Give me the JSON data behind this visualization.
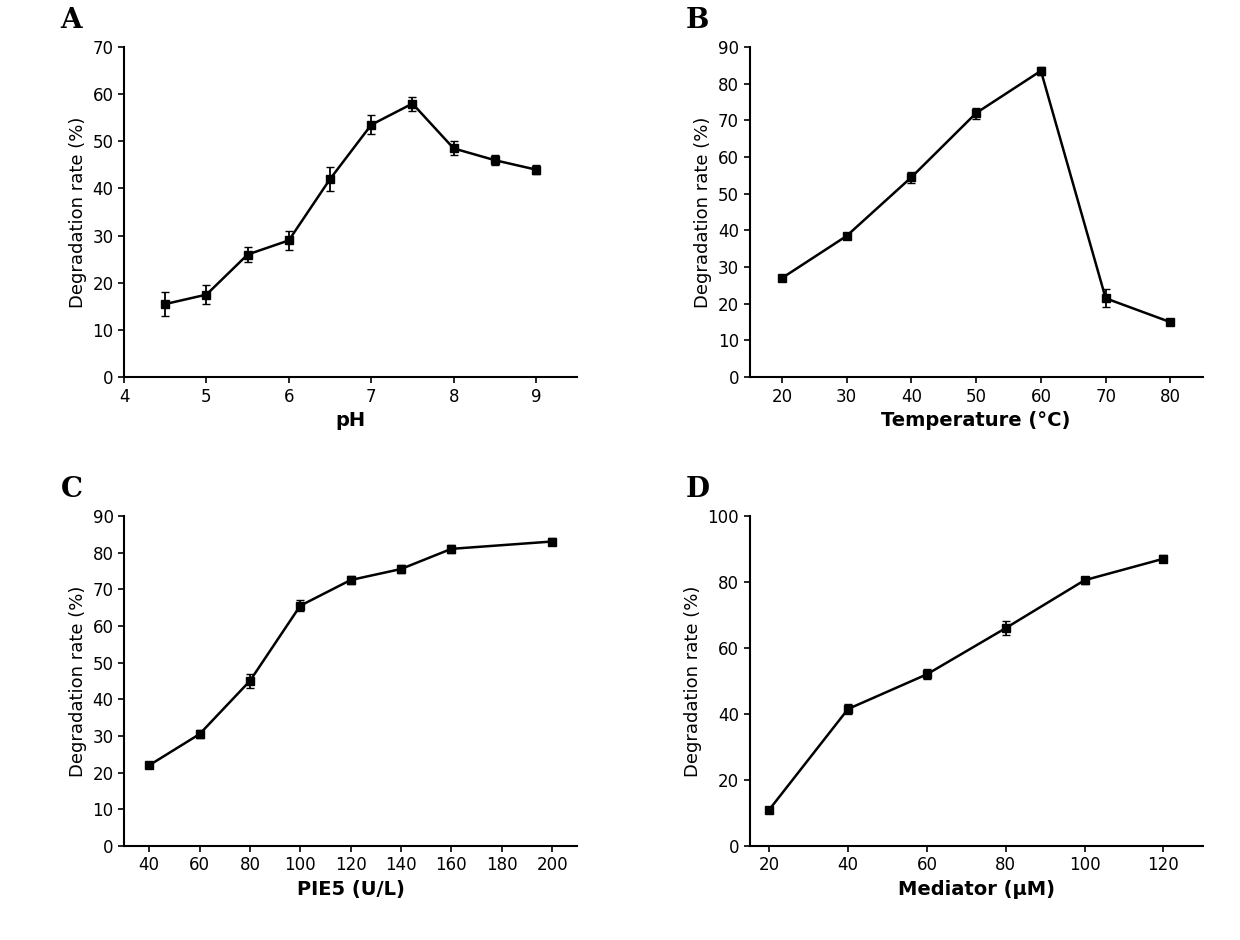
{
  "A": {
    "x": [
      4.5,
      5.0,
      5.5,
      6.0,
      6.5,
      7.0,
      7.5,
      8.0,
      8.5,
      9.0
    ],
    "y": [
      15.5,
      17.5,
      26.0,
      29.0,
      42.0,
      53.5,
      58.0,
      48.5,
      46.0,
      44.0
    ],
    "yerr": [
      2.5,
      2.0,
      1.5,
      2.0,
      2.5,
      2.0,
      1.5,
      1.5,
      1.0,
      1.0
    ],
    "xlabel": "pH",
    "ylabel": "Degradation rate (%)",
    "label": "A",
    "ylim": [
      0,
      70
    ],
    "yticks": [
      0,
      10,
      20,
      30,
      40,
      50,
      60,
      70
    ],
    "xlim": [
      4.0,
      9.5
    ],
    "xticks": [
      4,
      5,
      6,
      7,
      8,
      9
    ]
  },
  "B": {
    "x": [
      20,
      30,
      40,
      50,
      60,
      70,
      80
    ],
    "y": [
      27.0,
      38.5,
      54.5,
      72.0,
      83.5,
      21.5,
      15.0
    ],
    "yerr": [
      0.5,
      0.5,
      1.5,
      1.5,
      1.0,
      2.5,
      0.5
    ],
    "xlabel": "Temperature (°C)",
    "ylabel": "Degradation rate (%)",
    "label": "B",
    "ylim": [
      0,
      90
    ],
    "yticks": [
      0,
      10,
      20,
      30,
      40,
      50,
      60,
      70,
      80,
      90
    ],
    "xlim": [
      15,
      85
    ],
    "xticks": [
      20,
      30,
      40,
      50,
      60,
      70,
      80
    ]
  },
  "C": {
    "x": [
      40,
      60,
      80,
      100,
      120,
      140,
      160,
      200
    ],
    "y": [
      22.0,
      30.5,
      45.0,
      65.5,
      72.5,
      75.5,
      81.0,
      83.0
    ],
    "yerr": [
      0.5,
      1.0,
      2.0,
      1.5,
      1.0,
      1.0,
      1.0,
      1.0
    ],
    "xlabel": "PIE5 (U/L)",
    "ylabel": "Degradation rate (%)",
    "label": "C",
    "ylim": [
      0,
      90
    ],
    "yticks": [
      0,
      10,
      20,
      30,
      40,
      50,
      60,
      70,
      80,
      90
    ],
    "xlim": [
      30,
      210
    ],
    "xticks": [
      40,
      60,
      80,
      100,
      120,
      140,
      160,
      180,
      200
    ]
  },
  "D": {
    "x": [
      20,
      40,
      60,
      80,
      100,
      120
    ],
    "y": [
      11.0,
      41.5,
      52.0,
      66.0,
      80.5,
      87.0
    ],
    "yerr": [
      0.5,
      1.5,
      1.5,
      2.0,
      1.0,
      1.0
    ],
    "xlabel": "Mediator (μM)",
    "ylabel": "Degradation rate (%)",
    "label": "D",
    "ylim": [
      0,
      100
    ],
    "yticks": [
      0,
      20,
      40,
      60,
      80,
      100
    ],
    "xlim": [
      15,
      130
    ],
    "xticks": [
      20,
      40,
      60,
      80,
      100,
      120
    ]
  },
  "line_color": "#000000",
  "marker": "s",
  "markersize": 6,
  "linewidth": 1.8,
  "capsize": 3,
  "elinewidth": 1.3,
  "ylabel_fontsize": 13,
  "xlabel_fontsize": 14,
  "tick_fontsize": 12,
  "panel_label_fontsize": 20,
  "background_color": "#ffffff"
}
